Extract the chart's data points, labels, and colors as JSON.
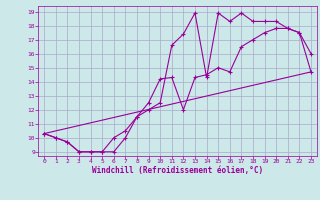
{
  "bg_color": "#cce8e8",
  "grid_color": "#aaaacc",
  "line_color": "#990099",
  "marker_color": "#990099",
  "xlabel": "Windchill (Refroidissement éolien,°C)",
  "xlabel_color": "#990099",
  "tick_color": "#990099",
  "xlim": [
    -0.5,
    23.5
  ],
  "ylim": [
    8.7,
    19.4
  ],
  "xticks": [
    0,
    1,
    2,
    3,
    4,
    5,
    6,
    7,
    8,
    9,
    10,
    11,
    12,
    13,
    14,
    15,
    16,
    17,
    18,
    19,
    20,
    21,
    22,
    23
  ],
  "yticks": [
    9,
    10,
    11,
    12,
    13,
    14,
    15,
    16,
    17,
    18,
    19
  ],
  "line1_x": [
    0,
    1,
    2,
    3,
    4,
    5,
    6,
    7,
    8,
    9,
    10,
    11,
    12,
    13,
    14,
    15,
    16,
    17,
    18,
    19,
    20,
    21,
    22,
    23
  ],
  "line1_y": [
    10.3,
    10.0,
    9.7,
    9.0,
    9.0,
    9.0,
    9.0,
    10.0,
    11.5,
    12.0,
    12.5,
    16.6,
    17.4,
    18.9,
    14.3,
    18.9,
    18.3,
    18.9,
    18.3,
    18.3,
    18.3,
    17.8,
    17.5,
    16.0
  ],
  "line2_x": [
    0,
    1,
    2,
    3,
    4,
    5,
    6,
    7,
    8,
    9,
    10,
    11,
    12,
    13,
    14,
    15,
    16,
    17,
    18,
    19,
    20,
    21,
    22,
    23
  ],
  "line2_y": [
    10.3,
    10.0,
    9.7,
    9.0,
    9.0,
    9.0,
    10.0,
    10.5,
    11.5,
    12.5,
    14.2,
    14.3,
    12.0,
    14.3,
    14.5,
    15.0,
    14.7,
    16.5,
    17.0,
    17.5,
    17.8,
    17.8,
    17.5,
    14.7
  ],
  "line3_x": [
    0,
    23
  ],
  "line3_y": [
    10.3,
    14.7
  ]
}
